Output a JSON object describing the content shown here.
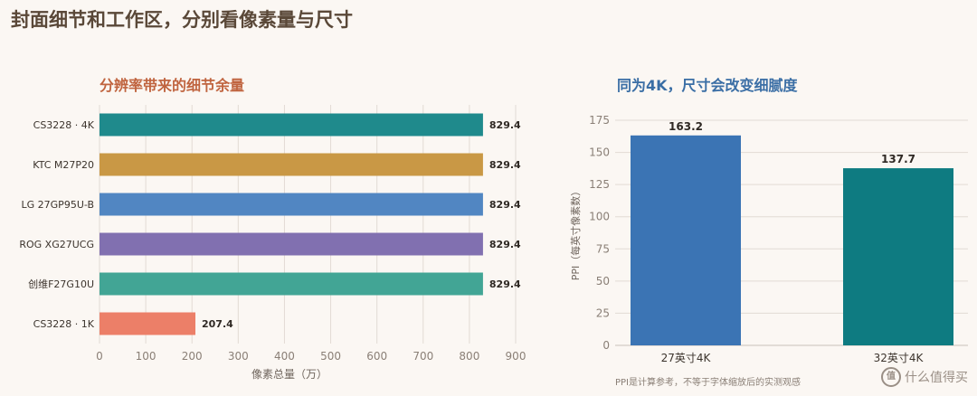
{
  "page": {
    "title": "封面细节和工作区，分别看像素量与尺寸",
    "watermark": "什么值得买",
    "watermark_icon": "值"
  },
  "chart_data": [
    {
      "type": "bar",
      "orientation": "horizontal",
      "title": "分辨率带来的细节余量",
      "categories": [
        "CS3228 · 4K",
        "KTC M27P20",
        "LG 27GP95U-B",
        "ROG XG27UCG",
        "创维F27G10U",
        "CS3228 · 1K"
      ],
      "values": [
        829.4,
        829.4,
        829.4,
        829.4,
        829.4,
        207.4
      ],
      "value_labels": [
        "829.4",
        "829.4",
        "829.4",
        "829.4",
        "829.4",
        "207.4"
      ],
      "colors": [
        "#1f8a8c",
        "#c99845",
        "#5186c2",
        "#8170b0",
        "#42a595",
        "#ec7f68"
      ],
      "xlabel": "像素总量（万）",
      "ylabel": "",
      "xlim": [
        0,
        900
      ],
      "xticks": [
        0,
        100,
        200,
        300,
        400,
        500,
        600,
        700,
        800,
        900
      ],
      "grid": "vertical",
      "title_color": "#c0643f"
    },
    {
      "type": "bar",
      "title": "同为4K，尺寸会改变细腻度",
      "categories": [
        "27英寸4K",
        "32英寸4K"
      ],
      "values": [
        163.2,
        137.7
      ],
      "value_labels": [
        "163.2",
        "137.7"
      ],
      "colors": [
        "#3b74b4",
        "#0e7b81"
      ],
      "xlabel": "",
      "ylabel": "PPI（每英寸像素数）",
      "ylim": [
        0,
        175
      ],
      "yticks": [
        0,
        25,
        50,
        75,
        100,
        125,
        150,
        175
      ],
      "grid": "horizontal",
      "footnote": "PPI是计算参考，不等于字体缩放后的实测观感",
      "title_color": "#3a6ea5"
    }
  ]
}
